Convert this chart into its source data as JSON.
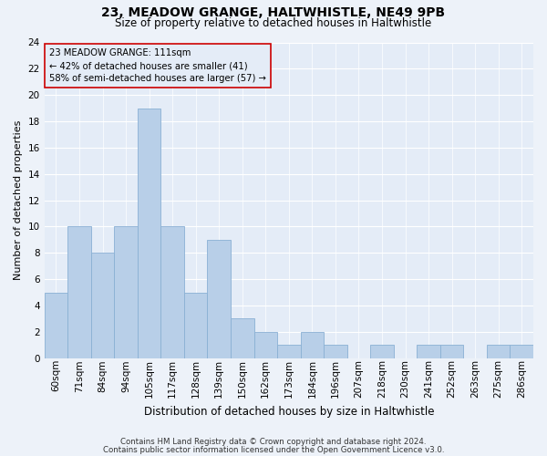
{
  "title1": "23, MEADOW GRANGE, HALTWHISTLE, NE49 9PB",
  "title2": "Size of property relative to detached houses in Haltwhistle",
  "xlabel": "Distribution of detached houses by size in Haltwhistle",
  "ylabel": "Number of detached properties",
  "categories": [
    "60sqm",
    "71sqm",
    "84sqm",
    "94sqm",
    "105sqm",
    "117sqm",
    "128sqm",
    "139sqm",
    "150sqm",
    "162sqm",
    "173sqm",
    "184sqm",
    "196sqm",
    "207sqm",
    "218sqm",
    "230sqm",
    "241sqm",
    "252sqm",
    "263sqm",
    "275sqm",
    "286sqm"
  ],
  "values": [
    5,
    10,
    8,
    10,
    19,
    10,
    5,
    9,
    3,
    2,
    1,
    2,
    1,
    0,
    1,
    0,
    1,
    1,
    0,
    1,
    1
  ],
  "bar_color": "#b8cfe8",
  "bar_edge_color": "#8ab0d4",
  "annotation_line1": "23 MEADOW GRANGE: 111sqm",
  "annotation_line2": "← 42% of detached houses are smaller (41)",
  "annotation_line3": "58% of semi-detached houses are larger (57) →",
  "annotation_box_color": "#cc0000",
  "ylim": [
    0,
    24
  ],
  "yticks": [
    0,
    2,
    4,
    6,
    8,
    10,
    12,
    14,
    16,
    18,
    20,
    22,
    24
  ],
  "footer1": "Contains HM Land Registry data © Crown copyright and database right 2024.",
  "footer2": "Contains public sector information licensed under the Open Government Licence v3.0.",
  "background_color": "#edf2f9",
  "plot_background_color": "#e4ecf7",
  "title_fontsize": 10,
  "subtitle_fontsize": 8.5,
  "xlabel_fontsize": 8.5,
  "ylabel_fontsize": 8,
  "tick_fontsize": 7.5,
  "footer_fontsize": 6.2
}
